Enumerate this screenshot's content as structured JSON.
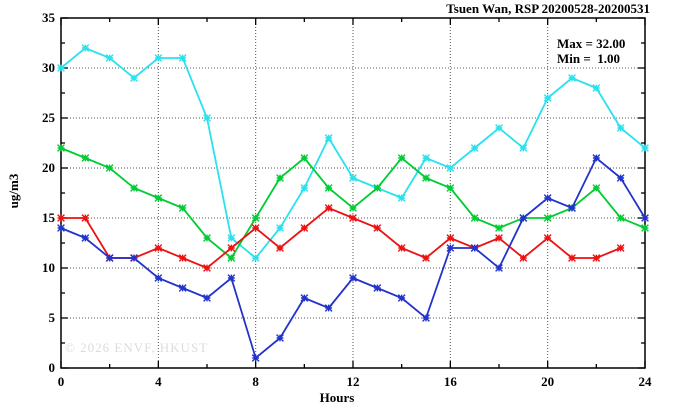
{
  "title": "Tsuen Wan, RSP 20200528-20200531",
  "annotation": {
    "max_label": "Max = 32.00",
    "min_label": "Min =  1.00"
  },
  "watermark": "© 2026 ENVF, HKUST",
  "axes": {
    "xlabel": "Hours",
    "ylabel": "ug/m3"
  },
  "chart_data": {
    "type": "line",
    "title": "Tsuen Wan, RSP 20200528-20200531",
    "xlabel": "Hours",
    "ylabel": "ug/m3",
    "xlim": [
      0,
      24
    ],
    "ylim": [
      0,
      35
    ],
    "x_ticks": [
      0,
      4,
      8,
      12,
      16,
      20,
      24
    ],
    "y_ticks": [
      0,
      5,
      10,
      15,
      20,
      25,
      30,
      35
    ],
    "x_minor_ticks": [
      2,
      6,
      10,
      14,
      18,
      22
    ],
    "y_minor_ticks": [
      2.5,
      7.5,
      12.5,
      17.5,
      22.5,
      27.5,
      32.5
    ],
    "grid": true,
    "legend": "none",
    "stat_max": 32.0,
    "stat_min": 1.0,
    "x": [
      0,
      1,
      2,
      3,
      4,
      5,
      6,
      7,
      8,
      9,
      10,
      11,
      12,
      13,
      14,
      15,
      16,
      17,
      18,
      19,
      20,
      21,
      22,
      23,
      24
    ],
    "series": [
      {
        "name": "cyan",
        "color": "#2ae1ee",
        "values": [
          30,
          32,
          31,
          29,
          31,
          31,
          25,
          13,
          11,
          14,
          18,
          23,
          19,
          18,
          17,
          21,
          20,
          22,
          24,
          22,
          27,
          29,
          28,
          24,
          22
        ]
      },
      {
        "name": "green",
        "color": "#00cc33",
        "values": [
          22,
          21,
          20,
          18,
          17,
          16,
          13,
          11,
          15,
          19,
          21,
          18,
          16,
          18,
          21,
          19,
          18,
          15,
          14,
          15,
          15,
          16,
          18,
          15,
          14
        ]
      },
      {
        "name": "red",
        "color": "#ee1111",
        "values": [
          15,
          15,
          11,
          11,
          12,
          11,
          10,
          12,
          14,
          12,
          14,
          16,
          15,
          14,
          12,
          11,
          13,
          12,
          13,
          11,
          13,
          11,
          11,
          12,
          null
        ]
      },
      {
        "name": "blue",
        "color": "#2233cc",
        "values": [
          14,
          13,
          11,
          11,
          9,
          8,
          7,
          9,
          1,
          3,
          7,
          6,
          9,
          8,
          7,
          5,
          12,
          12,
          10,
          15,
          17,
          16,
          21,
          19,
          15
        ]
      }
    ]
  }
}
